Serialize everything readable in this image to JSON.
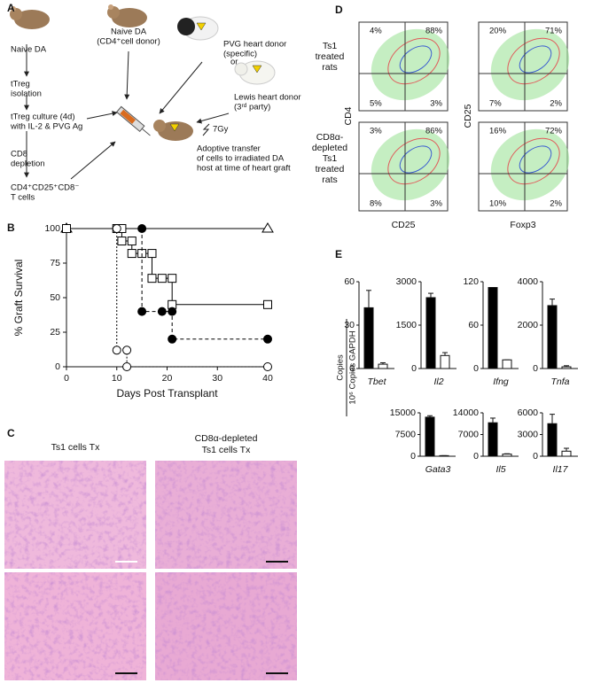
{
  "labels": [
    "A",
    "B",
    "C",
    "D",
    "E"
  ],
  "diagram": {
    "nodes": [
      {
        "lines": [
          "Naive DA"
        ]
      },
      {
        "lines": [
          "tTreg",
          "isolation"
        ]
      },
      {
        "lines": [
          "tTreg culture (4d)",
          "with IL-2 & PVG Ag"
        ]
      },
      {
        "lines": [
          "CD8",
          "depletion"
        ]
      },
      {
        "lines": [
          "CD4⁺CD25⁺CD8⁻",
          "T cells"
        ]
      },
      {
        "lines": [
          "Naive DA",
          "(CD4⁺cell donor)"
        ]
      },
      {
        "lines": [
          "PVG heart donor",
          "(specific)"
        ]
      },
      {
        "lines": [
          "or"
        ]
      },
      {
        "lines": [
          "Lewis heart donor",
          "(3ʳᵈ party)"
        ]
      },
      {
        "lines": [
          "7Gy"
        ]
      },
      {
        "lines": [
          "Adoptive transfer",
          "of cells to irradiated DA",
          "host at time of heart graft"
        ]
      }
    ]
  },
  "histology": {
    "titles": [
      {
        "lines": [
          "Ts1 cells Tx"
        ]
      },
      {
        "lines": [
          "CD8α-depleted",
          "Ts1 cells Tx"
        ]
      }
    ]
  },
  "flow": {
    "row_labels": [
      {
        "lines": [
          "Ts1",
          "treated",
          "rats"
        ]
      },
      {
        "lines": [
          "CD8α-",
          "depleted",
          "Ts1",
          "treated",
          "rats"
        ]
      }
    ],
    "y_labels": [
      "CD4",
      "CD25"
    ],
    "x_labels": [
      "CD25",
      "Foxp3"
    ],
    "plots": [
      {
        "quadrants": [
          "4%",
          "88%",
          "5%",
          "3%"
        ]
      },
      {
        "quadrants": [
          "20%",
          "71%",
          "7%",
          "2%"
        ]
      },
      {
        "quadrants": [
          "3%",
          "86%",
          "8%",
          "3%"
        ]
      },
      {
        "quadrants": [
          "16%",
          "72%",
          "10%",
          "2%"
        ]
      }
    ]
  },
  "copies_label": [
    "Copies",
    "10⁶ Copies GAPDH"
  ],
  "chart_data": [
    {
      "type": "line",
      "xlabel": "Days Post Transplant",
      "ylabel": "% Graft Survival",
      "xlim": [
        0,
        40
      ],
      "ylim": [
        0,
        100
      ],
      "xticks": [
        0,
        10,
        20,
        30,
        40
      ],
      "yticks": [
        0,
        25,
        50,
        75,
        100
      ],
      "series": [
        {
          "marker": "triangle",
          "filled": false,
          "linestyle": "solid",
          "color": "#000",
          "x": [
            0,
            40
          ],
          "values": [
            100,
            100
          ]
        },
        {
          "marker": "square",
          "filled": false,
          "linestyle": "solid",
          "color": "#000",
          "x": [
            0,
            10,
            11,
            11,
            13,
            13,
            15,
            17,
            17,
            19,
            21,
            21,
            40
          ],
          "values": [
            100,
            100,
            100,
            91,
            91,
            82,
            82,
            82,
            64,
            64,
            64,
            45,
            45
          ]
        },
        {
          "marker": "circle",
          "filled": true,
          "linestyle": "dashed",
          "color": "#000",
          "x": [
            15,
            15,
            19,
            21,
            21,
            40
          ],
          "values": [
            100,
            40,
            40,
            40,
            20,
            20
          ]
        },
        {
          "marker": "circle",
          "filled": false,
          "linestyle": "dotted",
          "color": "#000",
          "x": [
            10,
            10,
            12,
            12,
            40
          ],
          "values": [
            100,
            12,
            12,
            0,
            0
          ]
        }
      ]
    },
    {
      "type": "bar",
      "xlabel": "Tbet",
      "ylim": [
        0,
        60
      ],
      "yticks": [
        0,
        30,
        60
      ],
      "values": [
        42,
        3
      ],
      "errors": [
        12,
        1
      ],
      "colors": [
        "#000",
        "#fff"
      ]
    },
    {
      "type": "bar",
      "xlabel": "Il2",
      "ylim": [
        0,
        3000
      ],
      "yticks": [
        0,
        1500,
        3000
      ],
      "values": [
        2450,
        450
      ],
      "errors": [
        150,
        100
      ],
      "colors": [
        "#000",
        "#fff"
      ]
    },
    {
      "type": "bar",
      "xlabel": "Ifng",
      "ylim": [
        0,
        120
      ],
      "yticks": [
        0,
        60,
        120
      ],
      "values": [
        112,
        12
      ],
      "errors": [
        0,
        0
      ],
      "colors": [
        "#000",
        "#fff"
      ]
    },
    {
      "type": "bar",
      "xlabel": "Tnfa",
      "ylim": [
        0,
        4000
      ],
      "yticks": [
        0,
        2000,
        4000
      ],
      "values": [
        2900,
        80
      ],
      "errors": [
        300,
        50
      ],
      "colors": [
        "#000",
        "#fff"
      ]
    },
    {
      "type": "bar",
      "xlabel": "Gata3",
      "ylim": [
        0,
        15000
      ],
      "yticks": [
        0,
        7500,
        15000
      ],
      "values": [
        13500,
        200
      ],
      "errors": [
        500,
        0
      ],
      "colors": [
        "#000",
        "#fff"
      ]
    },
    {
      "type": "bar",
      "xlabel": "Il5",
      "ylim": [
        0,
        14000
      ],
      "yticks": [
        0,
        7000,
        14000
      ],
      "values": [
        10800,
        700
      ],
      "errors": [
        1500,
        100
      ],
      "colors": [
        "#000",
        "#fff"
      ]
    },
    {
      "type": "bar",
      "xlabel": "Il17",
      "ylim": [
        0,
        6000
      ],
      "yticks": [
        0,
        3000,
        6000
      ],
      "values": [
        4500,
        700
      ],
      "errors": [
        1300,
        400
      ],
      "colors": [
        "#000",
        "#fff"
      ]
    }
  ]
}
